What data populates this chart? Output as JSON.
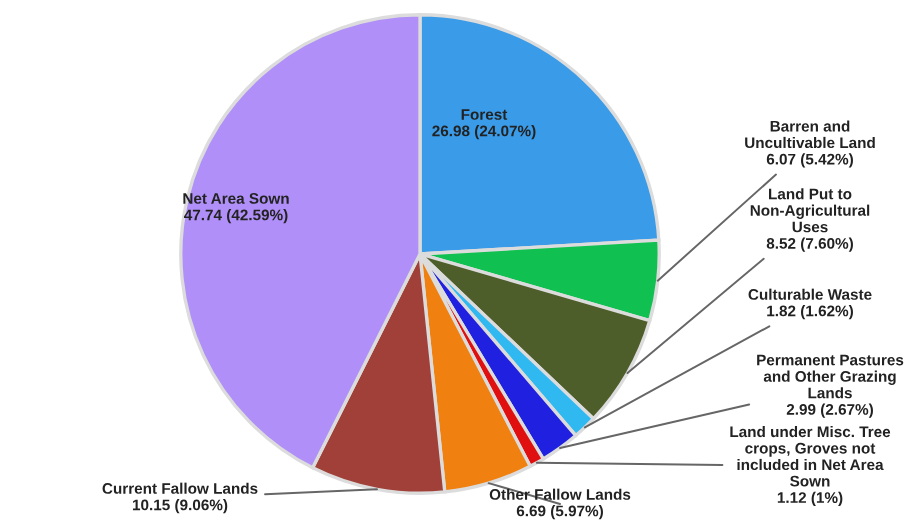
{
  "chart_data": {
    "type": "pie",
    "categories": [
      "Forest",
      "Barren and Uncultivable Land",
      "Land Put to Non-Agricultural Uses",
      "Culturable Waste",
      "Permanent Pastures and Other Grazing Lands",
      "Land under Misc. Tree crops, Groves not included in Net Area Sown",
      "Other Fallow Lands",
      "Current Fallow Lands",
      "Net Area Sown"
    ],
    "values": [
      26.98,
      6.07,
      8.52,
      1.82,
      2.99,
      1.12,
      6.69,
      10.15,
      47.74
    ],
    "value_labels": [
      "26.98 (24.07%)",
      "6.07 (5.42%)",
      "8.52 (7.60%)",
      "1.82 (1.62%)",
      "2.99 (2.67%)",
      "1.12 (1%)",
      "6.69 (5.97%)",
      "10.15 (9.06%)",
      "47.74 (42.59%)"
    ],
    "colors": [
      "#3a9be8",
      "#10c050",
      "#4e5e2a",
      "#30b8f0",
      "#2020e0",
      "#e01010",
      "#f08010",
      "#a04038",
      "#b090f8"
    ],
    "legend": false
  }
}
